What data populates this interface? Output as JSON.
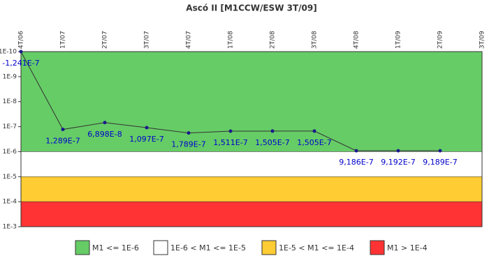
{
  "chart_data": {
    "type": "line",
    "title": "Ascó II [M1CCW/ESW 3T/09]",
    "categories": [
      "4T/06",
      "1T/07",
      "2T/07",
      "3T/07",
      "4T/07",
      "1T/08",
      "2T/08",
      "3T/08",
      "4T/08",
      "1T/09",
      "2T/09",
      "3T/09"
    ],
    "values": [
      -1.241e-07,
      1.289e-07,
      6.898e-08,
      1.097e-07,
      1.789e-07,
      1.511e-07,
      1.505e-07,
      1.505e-07,
      9.186e-07,
      9.192e-07,
      9.189e-07,
      null
    ],
    "value_labels": [
      "-1,241E-7",
      "1,289E-7",
      "6,898E-8",
      "1,097E-7",
      "1,789E-7",
      "1,511E-7",
      "1,505E-7",
      "1,505E-7",
      "9,186E-7",
      "9,192E-7",
      "9,189E-7",
      null
    ],
    "color": "#333333",
    "marker_color": "#1a1a8c",
    "label_color": "#0000cc",
    "log_scale": true,
    "inverted": true,
    "ylim": [
      1e-10,
      0.001
    ],
    "yticks": [
      {
        "value": 1e-10,
        "label": "1E-10"
      },
      {
        "value": 1e-09,
        "label": "1E-9"
      },
      {
        "value": 1e-08,
        "label": "1E-8"
      },
      {
        "value": 1e-07,
        "label": "1E-7"
      },
      {
        "value": 1e-06,
        "label": "1E-6"
      },
      {
        "value": 1e-05,
        "label": "1E-5"
      },
      {
        "value": 0.0001,
        "label": "1E-4"
      },
      {
        "value": 0.001,
        "label": "1E-3"
      }
    ],
    "bands": [
      {
        "label": "M1 <= 1E-6",
        "color": "#66cc66",
        "from": 1e-10,
        "to": 1e-06
      },
      {
        "label": "1E-6 < M1 <= 1E-5",
        "color": "#ffffff",
        "from": 1e-06,
        "to": 1e-05
      },
      {
        "label": "1E-5 < M1 <= 1E-4",
        "color": "#ffcc33",
        "from": 1e-05,
        "to": 0.0001
      },
      {
        "label": "M1 > 1E-4",
        "color": "#ff3333",
        "from": 0.0001,
        "to": 0.001
      }
    ]
  }
}
